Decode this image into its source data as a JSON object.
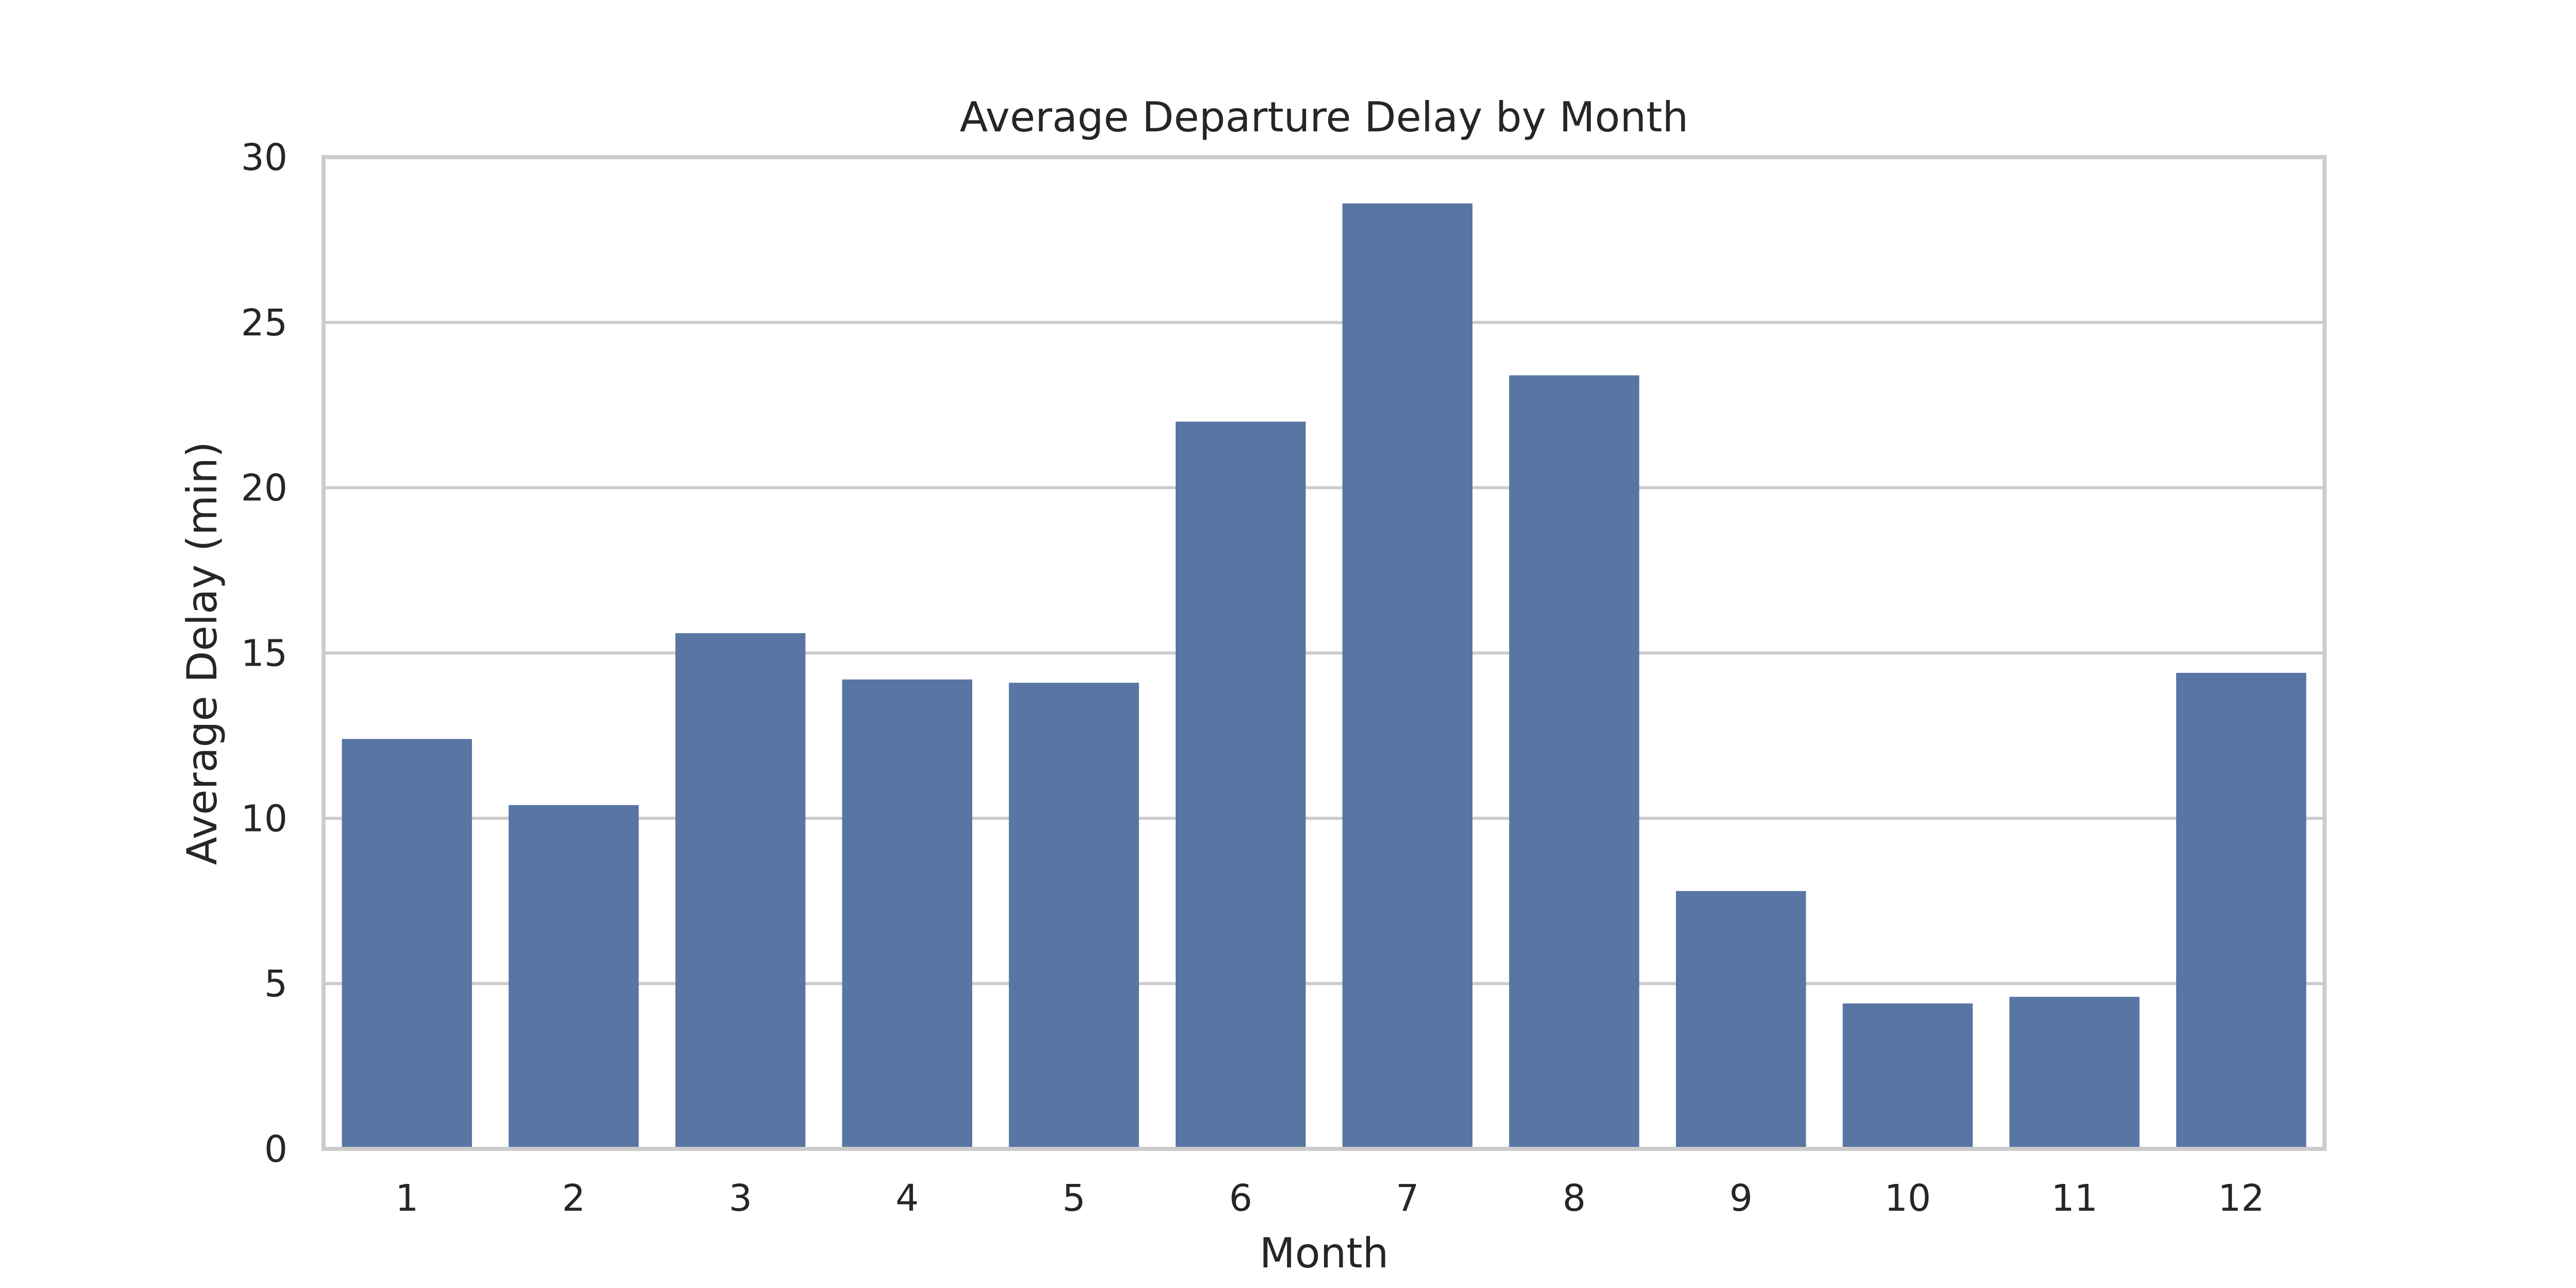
{
  "chart_data": {
    "type": "bar",
    "title": "Average Departure Delay by Month",
    "xlabel": "Month",
    "ylabel": "Average Delay (min)",
    "categories": [
      "1",
      "2",
      "3",
      "4",
      "5",
      "6",
      "7",
      "8",
      "9",
      "10",
      "11",
      "12"
    ],
    "values": [
      12.4,
      10.4,
      15.6,
      14.2,
      14.1,
      22.0,
      28.6,
      23.4,
      7.8,
      4.4,
      4.6,
      14.4
    ],
    "ylim": [
      0,
      30
    ],
    "yticks": [
      "0",
      "5",
      "10",
      "15",
      "20",
      "25",
      "30"
    ],
    "bar_color": "#5875a4",
    "grid": true,
    "legend": false
  }
}
